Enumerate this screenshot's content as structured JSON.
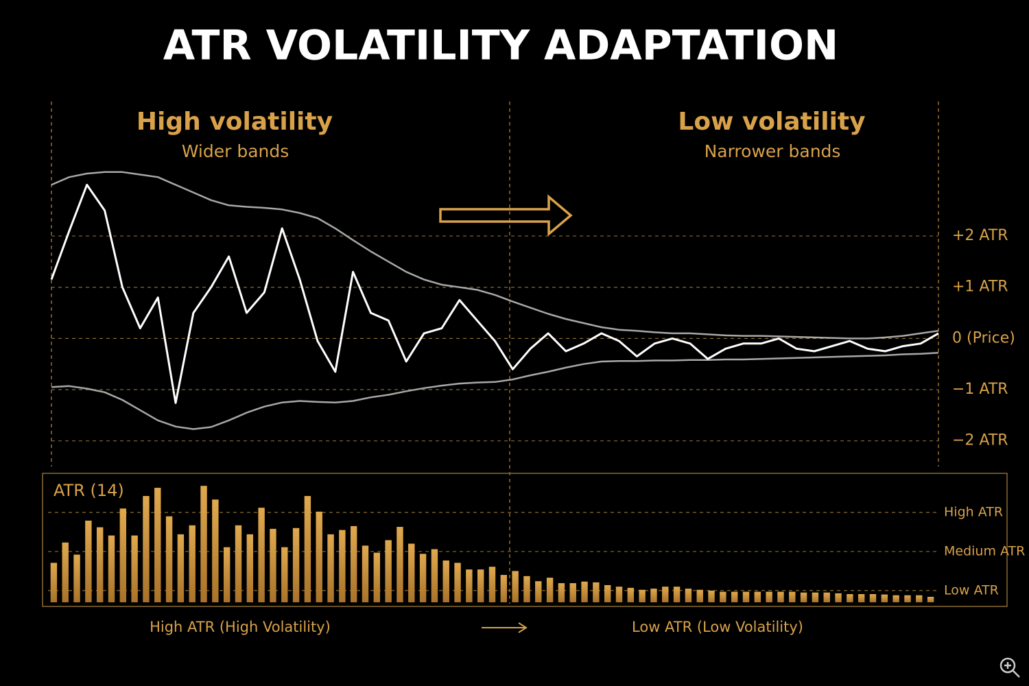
{
  "chart_data": [
    {
      "type": "line",
      "title": "ATR VOLATILITY ADAPTATION",
      "annotations": [
        "High volatility",
        "Wider bands",
        "Low volatility",
        "Narrower bands"
      ],
      "x": [
        0,
        2,
        4,
        6,
        8,
        10,
        12,
        14,
        16,
        18,
        20,
        22,
        24,
        26,
        28,
        30,
        32,
        34,
        36,
        38,
        40,
        42,
        44,
        46,
        48,
        50,
        52,
        54,
        56,
        58,
        60,
        62,
        64,
        66,
        68,
        70,
        72,
        74,
        76,
        78,
        80,
        82,
        84,
        86,
        88,
        90,
        92,
        94,
        96,
        98,
        100
      ],
      "xlim": [
        0,
        100
      ],
      "ylim": [
        -2.5,
        4.6
      ],
      "yticks": [
        {
          "value": 2,
          "label": "+2 ATR"
        },
        {
          "value": 1,
          "label": "+1 ATR"
        },
        {
          "value": 0,
          "label": "0 (Price)"
        },
        {
          "value": -1,
          "label": "−1 ATR"
        },
        {
          "value": -2,
          "label": "−2 ATR"
        }
      ],
      "grid": true,
      "series": [
        {
          "color": "#a8a8a8",
          "values": [
            3.0,
            3.15,
            3.22,
            3.25,
            3.25,
            3.2,
            3.15,
            3.0,
            2.85,
            2.7,
            2.6,
            2.57,
            2.55,
            2.52,
            2.45,
            2.35,
            2.15,
            1.92,
            1.7,
            1.5,
            1.3,
            1.15,
            1.05,
            1.0,
            0.95,
            0.85,
            0.72,
            0.6,
            0.48,
            0.38,
            0.3,
            0.22,
            0.17,
            0.15,
            0.12,
            0.1,
            0.1,
            0.08,
            0.06,
            0.05,
            0.05,
            0.04,
            0.03,
            0.02,
            0.01,
            0,
            0,
            0.02,
            0.05,
            0.1,
            0.15
          ]
        },
        {
          "color": "#a8a8a8",
          "values": [
            -0.95,
            -0.93,
            -0.98,
            -1.05,
            -1.2,
            -1.4,
            -1.6,
            -1.72,
            -1.77,
            -1.73,
            -1.6,
            -1.45,
            -1.33,
            -1.25,
            -1.22,
            -1.24,
            -1.25,
            -1.22,
            -1.15,
            -1.1,
            -1.03,
            -0.97,
            -0.92,
            -0.88,
            -0.86,
            -0.85,
            -0.8,
            -0.72,
            -0.65,
            -0.57,
            -0.5,
            -0.45,
            -0.44,
            -0.44,
            -0.43,
            -0.43,
            -0.42,
            -0.42,
            -0.41,
            -0.41,
            -0.4,
            -0.39,
            -0.38,
            -0.37,
            -0.36,
            -0.35,
            -0.34,
            -0.33,
            -0.31,
            -0.3,
            -0.28
          ]
        },
        {
          "color": "#ffffff",
          "values": [
            1.15,
            2.1,
            3.0,
            2.5,
            1.0,
            0.2,
            0.8,
            -1.26,
            0.5,
            1.0,
            1.6,
            0.5,
            0.9,
            2.15,
            1.15,
            -0.05,
            -0.65,
            1.3,
            0.5,
            0.35,
            -0.45,
            0.1,
            0.2,
            0.75,
            0.35,
            -0.05,
            -0.6,
            -0.2,
            0.1,
            -0.25,
            -0.1,
            0.1,
            -0.05,
            -0.35,
            -0.1,
            0,
            -0.1,
            -0.4,
            -0.2,
            -0.1,
            -0.1,
            0,
            -0.2,
            -0.25,
            -0.15,
            -0.05,
            -0.2,
            -0.25,
            -0.15,
            -0.1,
            0.1
          ]
        }
      ]
    },
    {
      "type": "bar",
      "title": "ATR (14)",
      "annotations": [
        "High ATR (High Volatility)",
        "Low ATR (Low Volatility)"
      ],
      "color": "#cf963d",
      "ylim": [
        0.7,
        4.0
      ],
      "yticks": [
        {
          "value": 3,
          "label": "High ATR"
        },
        {
          "value": 2,
          "label": "Medium ATR"
        },
        {
          "value": 1,
          "label": "Low ATR"
        }
      ],
      "grid": true,
      "values": [
        1.71,
        2.23,
        1.92,
        2.79,
        2.62,
        2.41,
        3.1,
        2.41,
        3.42,
        3.63,
        2.9,
        2.44,
        2.67,
        3.68,
        3.33,
        2.11,
        2.67,
        2.44,
        3.12,
        2.58,
        2.11,
        2.6,
        3.42,
        3.02,
        2.44,
        2.55,
        2.65,
        2.15,
        1.97,
        2.29,
        2.63,
        2.2,
        1.94,
        2.06,
        1.77,
        1.71,
        1.54,
        1.54,
        1.61,
        1.4,
        1.5,
        1.37,
        1.24,
        1.33,
        1.19,
        1.19,
        1.23,
        1.21,
        1.14,
        1.1,
        1.07,
        1.02,
        1.05,
        1.1,
        1.1,
        1.05,
        1.02,
        1.0,
        0.97,
        0.97,
        0.97,
        0.97,
        0.97,
        0.97,
        0.97,
        0.95,
        0.95,
        0.95,
        0.93,
        0.91,
        0.91,
        0.91,
        0.9,
        0.88,
        0.88,
        0.88,
        0.84
      ]
    }
  ]
}
